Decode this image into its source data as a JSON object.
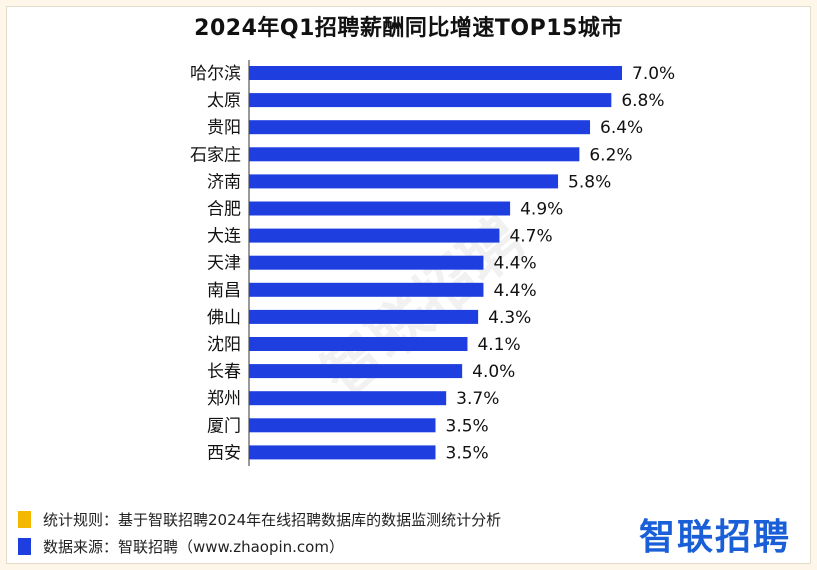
{
  "title": "2024年Q1招聘薪酬同比增速TOP15城市",
  "chart_data": {
    "type": "bar",
    "orientation": "horizontal",
    "categories": [
      "哈尔滨",
      "太原",
      "贵阳",
      "石家庄",
      "济南",
      "合肥",
      "大连",
      "天津",
      "南昌",
      "佛山",
      "沈阳",
      "长春",
      "郑州",
      "厦门",
      "西安"
    ],
    "values": [
      7.0,
      6.8,
      6.4,
      6.2,
      5.8,
      4.9,
      4.7,
      4.4,
      4.4,
      4.3,
      4.1,
      4.0,
      3.7,
      3.5,
      3.5
    ],
    "value_labels": [
      "7.0%",
      "6.8%",
      "6.4%",
      "6.2%",
      "5.8%",
      "4.9%",
      "4.7%",
      "4.4%",
      "4.4%",
      "4.3%",
      "4.1%",
      "4.0%",
      "3.7%",
      "3.5%",
      "3.5%"
    ],
    "xlim": [
      0,
      7.0
    ],
    "bar_color": "#1f3ee0",
    "grid": false,
    "legend": "none"
  },
  "footer": {
    "rule_text": "统计规则：基于智联招聘2024年在线招聘数据库的数据监测统计分析",
    "source_text": "数据来源：智联招聘（www.zhaopin.com）",
    "rule_color": "#f5b800",
    "source_color": "#1f3ee0"
  },
  "logo_text": "智联招聘",
  "watermark_text": "智联招聘"
}
